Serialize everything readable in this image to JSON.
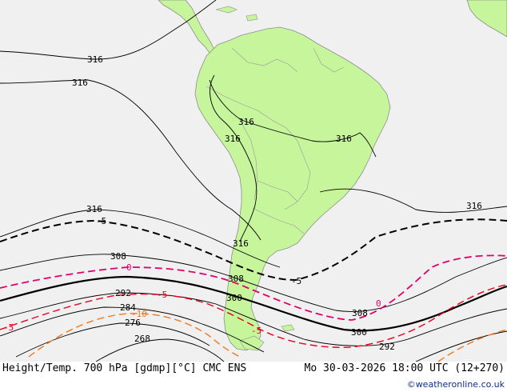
{
  "map": {
    "title": "Height/Temp. 700 hPa [gdmp][°C] CMC ENS",
    "valid_time": "Mo 30-03-2026 18:00 UTC (12+270)",
    "credit": "©weatheronline.co.uk",
    "colors": {
      "ocean": "#f0f0f0",
      "land": "#c6f59c",
      "coast": "#8e8e8e",
      "height_contour": "#000000",
      "temp_zero": "#e0006e",
      "temp_minus5": "#e8001e",
      "temp_minus10": "#f07820"
    },
    "height_labels": [
      "316",
      "316",
      "316",
      "316",
      "316",
      "316",
      "316",
      "316",
      "308",
      "308",
      "308",
      "300",
      "300",
      "292",
      "292",
      "284",
      "276",
      "268"
    ],
    "temp_labels": [
      "-5",
      "-5",
      "0",
      "0",
      "-5",
      "-10",
      "-5",
      "-5"
    ]
  }
}
